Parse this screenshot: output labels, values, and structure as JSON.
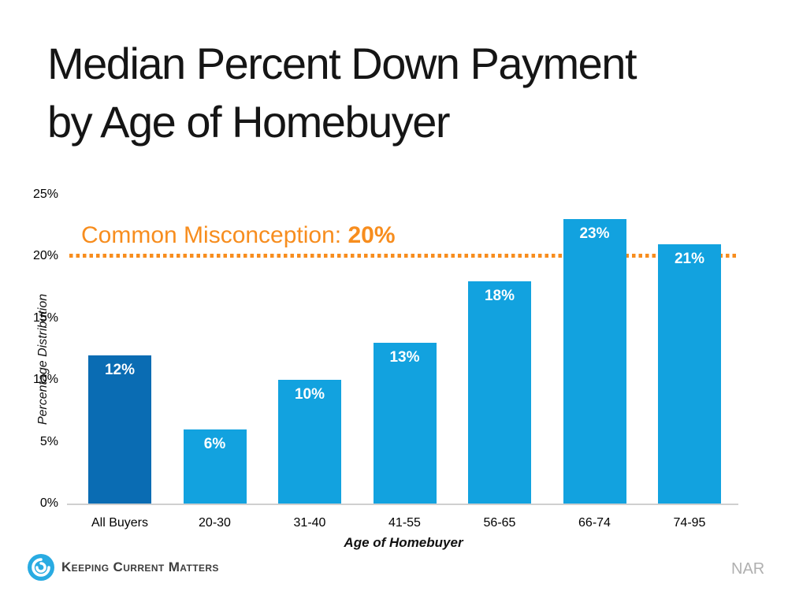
{
  "title": {
    "line1": "Median Percent Down Payment",
    "line2": "by Age of Homebuyer"
  },
  "annotation": {
    "prefix": "Common Misconception: ",
    "value": "20%"
  },
  "chart_data": {
    "type": "bar",
    "title": "Median Percent Down Payment by Age of Homebuyer",
    "categories": [
      "All Buyers",
      "20-30",
      "31-40",
      "41-55",
      "56-65",
      "66-74",
      "74-95"
    ],
    "values": [
      12,
      6,
      10,
      13,
      18,
      23,
      21
    ],
    "bar_labels": [
      "12%",
      "6%",
      "10%",
      "13%",
      "18%",
      "23%",
      "21%"
    ],
    "xlabel": "Age of Homebuyer",
    "ylabel": "Percentage Distribution",
    "ylim": [
      0,
      25
    ],
    "ytick_values": [
      0,
      5,
      10,
      15,
      20,
      25
    ],
    "ytick_labels": [
      "0%",
      "5%",
      "10%",
      "15%",
      "20%",
      "25%"
    ],
    "grid": false,
    "legend": "none",
    "reference_line": {
      "value": 20,
      "style": "dotted",
      "color": "#F78D1E",
      "label": "Common Misconception: 20%"
    },
    "colors": {
      "highlight_bar": "#0A6CB3",
      "default_bar": "#12A2DF",
      "highlight_category": "All Buyers"
    }
  },
  "footer": {
    "logo_text": "Keeping Current Matters",
    "source": "NAR"
  },
  "colors": {
    "accent_orange": "#F78D1E",
    "logo_blue": "#29ABE2",
    "axis_line": "#cfcfcf",
    "title_text": "#151515",
    "source_text": "#b0b0b0"
  }
}
